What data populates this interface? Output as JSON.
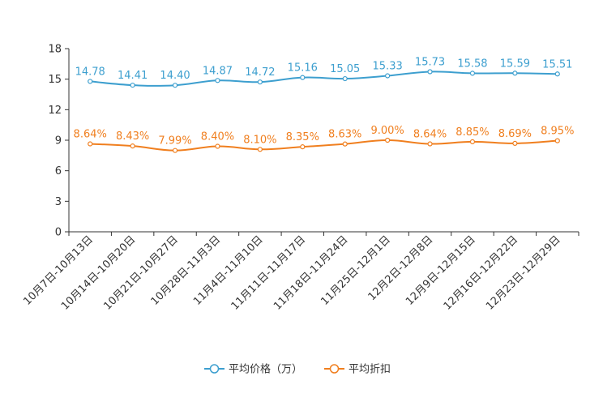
{
  "chart_data": {
    "type": "line",
    "categories": [
      "10月7日-10月13日",
      "10月14日-10月20日",
      "10月21日-10月27日",
      "10月28日-11月3日",
      "11月4日-11月10日",
      "11月11日-11月17日",
      "11月18日-11月24日",
      "11月25日-12月1日",
      "12月2日-12月8日",
      "12月9日-12月15日",
      "12月16日-12月22日",
      "12月23日-12月29日"
    ],
    "series": [
      {
        "name": "平均价格（万）",
        "color": "#3d9fcf",
        "values": [
          14.78,
          14.41,
          14.4,
          14.87,
          14.72,
          15.16,
          15.05,
          15.33,
          15.73,
          15.58,
          15.59,
          15.51
        ],
        "labels": [
          "14.78",
          "14.41",
          "14.40",
          "14.87",
          "14.72",
          "15.16",
          "15.05",
          "15.33",
          "15.73",
          "15.58",
          "15.59",
          "15.51"
        ]
      },
      {
        "name": "平均折扣",
        "color": "#f07f1f",
        "values": [
          8.64,
          8.43,
          7.99,
          8.4,
          8.1,
          8.35,
          8.63,
          9.0,
          8.64,
          8.85,
          8.69,
          8.95
        ],
        "labels": [
          "8.64%",
          "8.43%",
          "7.99%",
          "8.40%",
          "8.10%",
          "8.35%",
          "8.63%",
          "9.00%",
          "8.64%",
          "8.85%",
          "8.69%",
          "8.95%"
        ]
      }
    ],
    "yticks": [
      "0",
      "3",
      "6",
      "9",
      "12",
      "15",
      "18"
    ],
    "ylim": [
      0,
      18
    ],
    "title": "",
    "xlabel": "",
    "ylabel": "",
    "legend_position": "bottom-center"
  }
}
